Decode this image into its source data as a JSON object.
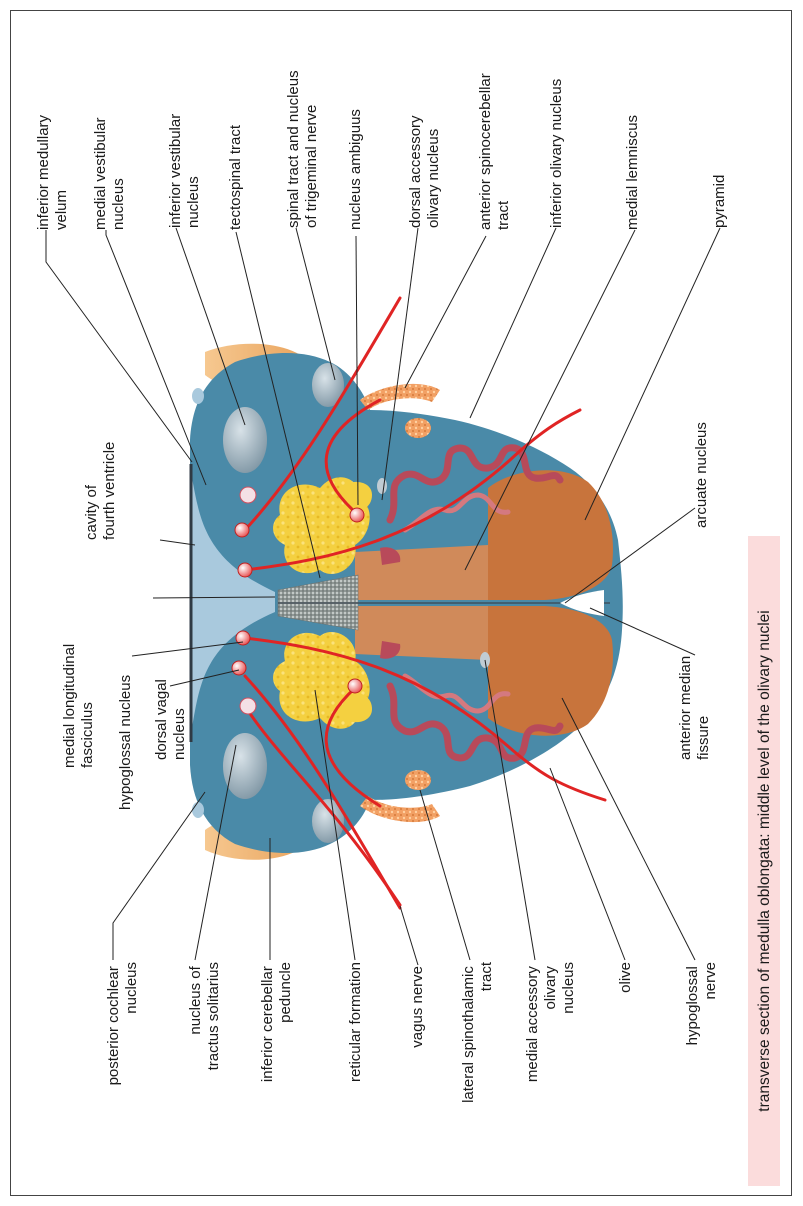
{
  "caption": "transverse  section of medulla oblongata: middle level of the olivary nuclei",
  "labels": {
    "inferior_medullary_velum": [
      "inferior medullary",
      "velum"
    ],
    "medial_vestibular_nucleus": [
      "medial vestibular",
      "nucleus"
    ],
    "inferior_vestibular_nucleus": [
      "inferior vestibular",
      "nucleus"
    ],
    "tectospinal_tract": [
      "tectospinal tract"
    ],
    "spinal_tract_trigeminal": [
      "spinal tract and nucleus",
      "of trigeminal nerve"
    ],
    "nucleus_ambiguus": [
      "nucleus ambiguus"
    ],
    "dorsal_accessory_olivary": [
      "dorsal accessory",
      "olivary nucleus"
    ],
    "anterior_spinocerebellar": [
      "anterior spinocerebellar",
      "tract"
    ],
    "inferior_olivary_nucleus": [
      "inferior olivary nucleus"
    ],
    "medial_lemniscus": [
      "medial lemniscus"
    ],
    "pyramid": [
      "pyramid"
    ],
    "cavity_fourth_ventricle": [
      "cavity of",
      "fourth ventricle"
    ],
    "arcuate_nucleus": [
      "arcuate nucleus"
    ],
    "medial_longitudinal_fasciculus": [
      "medial longitudinal",
      "fasciculus"
    ],
    "hypoglossal_nucleus": [
      "hypoglossal nucleus"
    ],
    "dorsal_vagal_nucleus": [
      "dorsal vagal",
      "nucleus"
    ],
    "anterior_median_fissure": [
      "anterior median",
      "fissure"
    ],
    "posterior_cochlear_nucleus": [
      "posterior cochlear",
      "nucleus"
    ],
    "nucleus_tractus_solitarius": [
      "nucleus of",
      "tractus solitarius"
    ],
    "inferior_cerebellar_peduncle": [
      "inferior cerebellar",
      "peduncle"
    ],
    "reticular_formation": [
      "reticular formation"
    ],
    "vagus_nerve": [
      "vagus nerve"
    ],
    "lateral_spinothalamic_tract": [
      "lateral spinothalamic",
      "tract"
    ],
    "medial_accessory_olivary_nucleus": [
      "medial accessory",
      "olivary",
      "nucleus"
    ],
    "olive": [
      "olive"
    ],
    "hypoglossal_nerve": [
      "hypoglossal",
      "nerve"
    ]
  },
  "colors": {
    "tissue": "#4a8aa8",
    "pyramid": "#c8743c",
    "lemniscus": "#d08a5a",
    "peduncle": "#f0b070",
    "motor_nucleus": "#f4d040",
    "olivary": "#b84a5a",
    "nerve": "#e02424",
    "vestibular": "#9aaab4",
    "caption_bg": "#fbdcdc"
  }
}
